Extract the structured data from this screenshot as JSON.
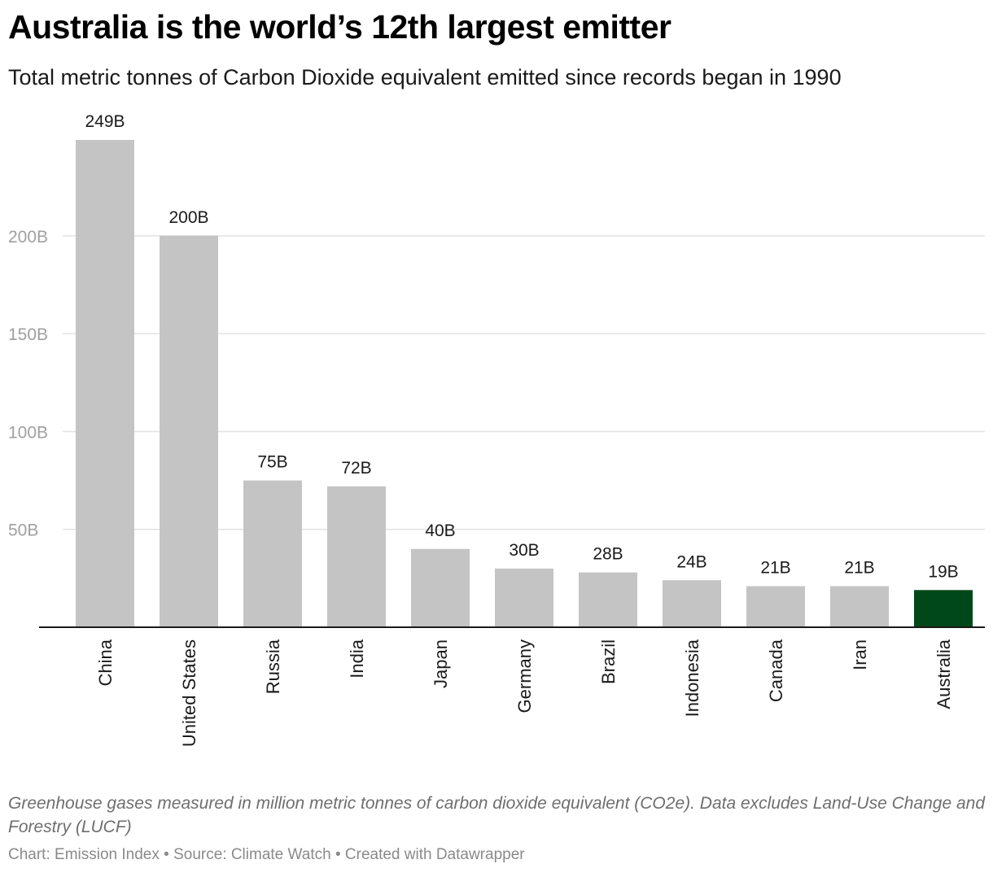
{
  "header": {
    "title": "Australia is the world’s 12th largest emitter",
    "subtitle": "Total metric tonnes of Carbon Dioxide equivalent emitted since records began in 1990"
  },
  "footer": {
    "notes": "Greenhouse gases measured in million metric tonnes of carbon dioxide equivalent (CO2e). Data excludes Land-Use Change and Forestry (LUCF)",
    "chart_credit": "Chart: Emission Index",
    "source": "Source: Climate Watch",
    "created_with": "Created with Datawrapper",
    "separator": "•"
  },
  "colors": {
    "bar_default": "#c4c4c4",
    "bar_highlight": "#00471a",
    "gridline": "#e2e2e2",
    "axis": "#1a1a1a"
  },
  "chart_data": {
    "type": "bar",
    "title": "Australia is the world’s 12th largest emitter",
    "subtitle": "Total metric tonnes of Carbon Dioxide equivalent emitted since records began in 1990",
    "categories": [
      "China",
      "United States",
      "Russia",
      "India",
      "Japan",
      "Germany",
      "Brazil",
      "Indonesia",
      "Canada",
      "Iran",
      "Australia"
    ],
    "values": [
      249,
      200,
      75,
      72,
      40,
      30,
      28,
      24,
      21,
      21,
      19
    ],
    "value_labels": [
      "249B",
      "200B",
      "75B",
      "72B",
      "40B",
      "30B",
      "28B",
      "24B",
      "21B",
      "21B",
      "19B"
    ],
    "highlight": "Australia",
    "unit": "B",
    "yticks": [
      50,
      100,
      150,
      200
    ],
    "ytick_labels": [
      "50B",
      "100B",
      "150B",
      "200B"
    ],
    "ylim": [
      0,
      249
    ],
    "grid": true,
    "xlabel": "",
    "ylabel": "",
    "xtick_rotation": "vertical"
  }
}
